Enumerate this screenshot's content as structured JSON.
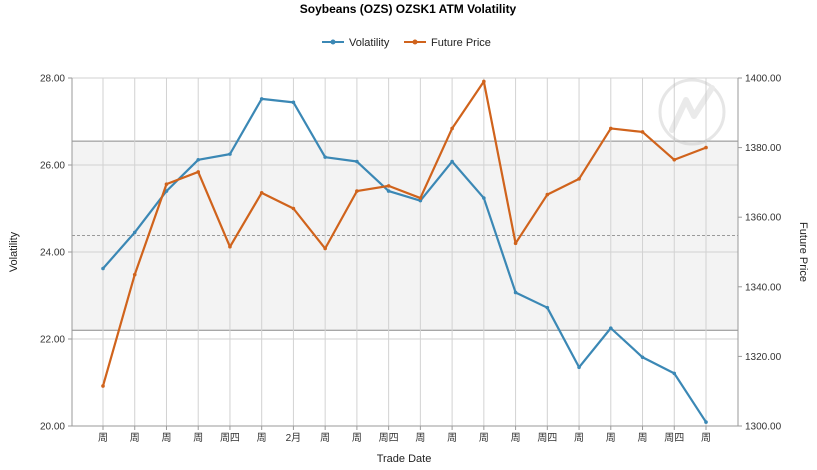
{
  "chart_data": {
    "type": "line",
    "title": "Soybeans (OZS) OZSK1 ATM Volatility",
    "xlabel": "Trade Date",
    "ylabel": "Volatility",
    "y2label": "Future Price",
    "categories": [
      "周",
      "周",
      "周",
      "周",
      "周四",
      "周",
      "2月",
      "周",
      "周",
      "周四",
      "周",
      "周",
      "周",
      "周",
      "周四",
      "周",
      "周",
      "周",
      "周四",
      "周"
    ],
    "ylim": [
      20,
      28
    ],
    "y2lim": [
      1300,
      1400
    ],
    "yticks": [
      "20.00",
      "22.00",
      "24.00",
      "26.00",
      "28.00"
    ],
    "y2ticks": [
      "1300.00",
      "1320.00",
      "1340.00",
      "1360.00",
      "1380.00",
      "1400.00"
    ],
    "band": {
      "low": 22.2,
      "high": 26.55,
      "mid": 24.38
    },
    "legend_position": "top-center",
    "colors": {
      "volatility": "#3b88b5",
      "future_price": "#d0631c"
    },
    "series": [
      {
        "name": "Volatility",
        "axis": "left",
        "color": "#3b88b5",
        "values": [
          23.62,
          24.45,
          25.4,
          26.12,
          26.25,
          27.52,
          27.44,
          26.18,
          26.08,
          25.4,
          25.18,
          26.08,
          25.24,
          23.07,
          22.72,
          21.35,
          22.25,
          21.58,
          21.21,
          20.09
        ]
      },
      {
        "name": "Future Price",
        "axis": "right",
        "color": "#d0631c",
        "values": [
          1311.5,
          1343.5,
          1369.5,
          1373.0,
          1351.5,
          1367.0,
          1362.5,
          1351.0,
          1367.5,
          1369.0,
          1365.5,
          1385.5,
          1399.0,
          1352.5,
          1366.5,
          1371.0,
          1385.5,
          1384.5,
          1376.5,
          1380.0
        ]
      }
    ]
  }
}
